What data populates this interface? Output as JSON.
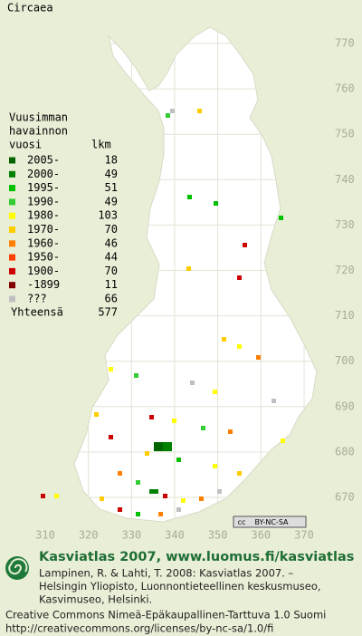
{
  "title": "Circaea",
  "legend": {
    "heading": [
      "Vuusimman",
      "havainnon"
    ],
    "columns": [
      "vuosi",
      "lkm"
    ],
    "rows": [
      {
        "label": "2005-",
        "count": 18,
        "color": "#006400"
      },
      {
        "label": "2000-",
        "count": 49,
        "color": "#008000"
      },
      {
        "label": "1995-",
        "count": 51,
        "color": "#00c000"
      },
      {
        "label": "1990-",
        "count": 49,
        "color": "#33cc33"
      },
      {
        "label": "1980-",
        "count": 103,
        "color": "#ffff00"
      },
      {
        "label": "1970-",
        "count": 70,
        "color": "#ffcc00"
      },
      {
        "label": "1960-",
        "count": 46,
        "color": "#ff8000"
      },
      {
        "label": "1950-",
        "count": 44,
        "color": "#ff4000"
      },
      {
        "label": "1900-",
        "count": 70,
        "color": "#cc0000"
      },
      {
        "label": "-1899",
        "count": 11,
        "color": "#800000"
      },
      {
        "label": "???",
        "count": 66,
        "color": "#c0c0c0"
      }
    ],
    "total_label": "Yhteensä",
    "total": 577
  },
  "xticks": [
    310,
    320,
    330,
    340,
    350,
    360,
    370
  ],
  "yticks": [
    670,
    680,
    690,
    700,
    710,
    720,
    730,
    740,
    750,
    760,
    770
  ],
  "badge": {
    "icon": "cc",
    "text": "BY-NC-SA"
  },
  "footer": {
    "brand": "Kasviatlas 2007, www.luomus.fi/kasviatlas",
    "citation": [
      "Lampinen, R. & Lahti, T. 2008: Kasviatlas 2007. –",
      "Helsingin Yliopisto, Luonnontieteellinen keskusmuseo,",
      "Kasvimuseo, Helsinki."
    ],
    "license": [
      "Creative Commons Nimeä-Epäkaupallinen-Tarttuva 1.0 Suomi",
      "http://creativecommons.org/licenses/by-nc-sa/1.0/fi"
    ]
  }
}
